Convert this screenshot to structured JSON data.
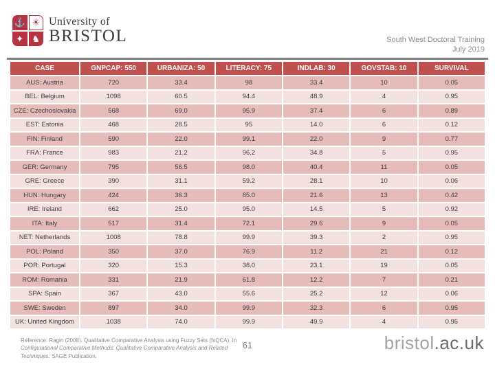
{
  "slide_title_area": {
    "logo": {
      "org_line": "University of",
      "name_line": "BRISTOL",
      "crest": [
        {
          "name": "ship-icon",
          "glyph": "⚓"
        },
        {
          "name": "sun-icon",
          "glyph": "☀"
        },
        {
          "name": "book-icon",
          "glyph": "✦"
        },
        {
          "name": "horse-icon",
          "glyph": "♞"
        }
      ]
    },
    "event": {
      "line1": "South West Doctoral Training",
      "line2": "July 2019"
    }
  },
  "table": {
    "columns": [
      "CASE",
      "GNPCAP: 550",
      "URBANIZA: 50",
      "LITERACY: 75",
      "INDLAB: 30",
      "GOVSTAB: 10",
      "SURVIVAL"
    ],
    "rows": [
      [
        "AUS: Austria",
        "720",
        "33.4",
        "98",
        "33.4",
        "10",
        "0.05"
      ],
      [
        "BEL: Belgium",
        "1098",
        "60.5",
        "94.4",
        "48.9",
        "4",
        "0.95"
      ],
      [
        "CZE: Czechoslovakia",
        "568",
        "69.0",
        "95.9",
        "37.4",
        "6",
        "0.89"
      ],
      [
        "EST: Estonia",
        "468",
        "28.5",
        "95",
        "14.0",
        "6",
        "0.12"
      ],
      [
        "FIN: Finland",
        "590",
        "22.0",
        "99.1",
        "22.0",
        "9",
        "0.77"
      ],
      [
        "FRA: France",
        "983",
        "21.2",
        "96.2",
        "34.8",
        "5",
        "0.95"
      ],
      [
        "GER: Germany",
        "795",
        "56.5",
        "98.0",
        "40.4",
        "11",
        "0.05"
      ],
      [
        "GRE: Greece",
        "390",
        "31.1",
        "59.2",
        "28.1",
        "10",
        "0.06"
      ],
      [
        "HUN: Hungary",
        "424",
        "36.3",
        "85.0",
        "21.6",
        "13",
        "0.42"
      ],
      [
        "IRE: Ireland",
        "662",
        "25.0",
        "95.0",
        "14.5",
        "5",
        "0.92"
      ],
      [
        "ITA: Italy",
        "517",
        "31.4",
        "72.1",
        "29.6",
        "9",
        "0.05"
      ],
      [
        "NET: Netherlands",
        "1008",
        "78.8",
        "99.9",
        "39.3",
        "2",
        "0.95"
      ],
      [
        "POL: Poland",
        "350",
        "37.0",
        "76.9",
        "11.2",
        "21",
        "0.12"
      ],
      [
        "POR: Portugal",
        "320",
        "15.3",
        "38.0",
        "23.1",
        "19",
        "0.05"
      ],
      [
        "ROM: Romania",
        "331",
        "21.9",
        "61.8",
        "12.2",
        "7",
        "0.21"
      ],
      [
        "SPA: Spain",
        "367",
        "43.0",
        "55.6",
        "25.2",
        "12",
        "0.06"
      ],
      [
        "SWE: Sweden",
        "897",
        "34.0",
        "99.9",
        "32.3",
        "6",
        "0.95"
      ],
      [
        "UK: United Kingdom",
        "1038",
        "74.0",
        "99.9",
        "49.9",
        "4",
        "0.95"
      ]
    ]
  },
  "footer": {
    "reference_prefix": "Reference: Ragin (2008). Qualitative Comparative Analysis using Fuzzy Sets (fsQCA). In ",
    "reference_italic": "Configurational Comparative Methods: Qualitative Comparative Analysis and Related Techniques.",
    "reference_suffix": " SAGE Publication.",
    "page_number": "61",
    "website_light": "bristol",
    "website_dark": ".ac.uk"
  },
  "colors": {
    "header_bg": "#C0504D",
    "band_dark": "#E5BCBA",
    "band_light": "#F2E1DF",
    "logo_red": "#B63341",
    "divider_gray": "#7F7F7F"
  }
}
